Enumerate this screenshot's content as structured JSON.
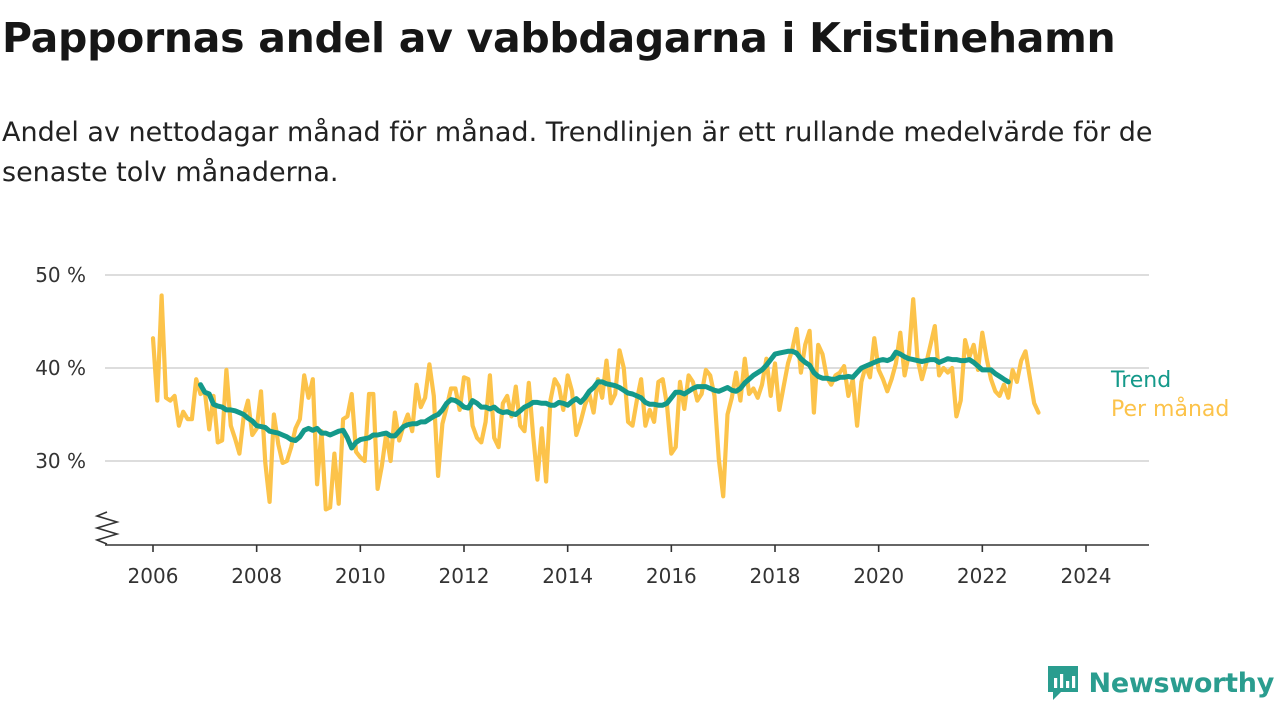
{
  "title": "Pappornas andel av vabbdagarna i Kristinehamn",
  "subtitle": "Andel av nettodagar månad för månad. Trendlinjen är ett rullande medelvärde för de senaste tolv månaderna.",
  "brand": {
    "name": "Newsworthy",
    "icon": "newsworthy-logo-icon"
  },
  "colors": {
    "monthly": "#fcc34a",
    "trend": "#14998a",
    "grid": "#dddddd",
    "axis": "#333333"
  },
  "chart_data": {
    "type": "line",
    "title": "Pappornas andel av vabbdagarna i Kristinehamn",
    "xlabel": "",
    "ylabel": "",
    "y_unit": "%",
    "x_range": [
      2006,
      2024.5
    ],
    "ylim": [
      21,
      50
    ],
    "y_axis_break": true,
    "y_ticks": [
      30,
      40,
      50
    ],
    "y_tick_labels": [
      "30 %",
      "40 %",
      "50 %"
    ],
    "x_ticks": [
      2006,
      2008,
      2010,
      2012,
      2014,
      2016,
      2018,
      2020,
      2022,
      2024
    ],
    "x_tick_labels": [
      "2006",
      "2008",
      "2010",
      "2012",
      "2014",
      "2016",
      "2018",
      "2020",
      "2022",
      "2024"
    ],
    "grid": "horizontal",
    "legend": "inline labels at line ends",
    "series": [
      {
        "name": "Per månad",
        "x_start": "2006-01",
        "frequency": "monthly",
        "values": [
          43.2,
          36.5,
          47.8,
          36.8,
          36.5,
          37.0,
          33.8,
          35.3,
          34.5,
          34.5,
          38.8,
          37.2,
          37.5,
          33.4,
          37.0,
          32.0,
          32.2,
          39.8,
          33.8,
          32.4,
          30.8,
          34.8,
          36.5,
          32.8,
          33.5,
          37.5,
          29.8,
          25.6,
          35.0,
          31.8,
          29.8,
          30.0,
          31.5,
          33.5,
          34.5,
          39.2,
          36.8,
          38.8,
          27.5,
          33.2,
          24.8,
          25.0,
          30.8,
          25.4,
          34.5,
          34.8,
          37.2,
          31.0,
          30.4,
          30.0,
          37.2,
          37.2,
          27.0,
          29.5,
          33.0,
          30.0,
          35.2,
          32.2,
          33.8,
          35.0,
          33.2,
          38.2,
          35.8,
          36.8,
          40.4,
          37.0,
          28.4,
          34.0,
          35.8,
          37.8,
          37.8,
          35.5,
          39.0,
          38.8,
          33.8,
          32.5,
          32.0,
          34.2,
          39.2,
          32.5,
          31.5,
          36.2,
          37.0,
          34.8,
          38.0,
          33.8,
          33.2,
          38.4,
          32.8,
          28.0,
          33.5,
          27.8,
          36.5,
          38.8,
          38.0,
          35.5,
          39.2,
          37.5,
          32.8,
          34.2,
          36.0,
          37.2,
          35.2,
          38.8,
          36.8,
          40.8,
          36.2,
          37.2,
          41.9,
          40.0,
          34.2,
          33.8,
          36.5,
          38.8,
          33.8,
          35.5,
          34.2,
          38.5,
          38.8,
          36.0,
          30.8,
          31.5,
          38.5,
          35.6,
          39.2,
          38.5,
          36.5,
          37.2,
          39.8,
          39.2,
          37.0,
          30.2,
          26.2,
          35.0,
          36.8,
          39.5,
          36.5,
          41.0,
          37.2,
          37.8,
          36.8,
          38.2,
          41.0,
          37.0,
          40.5,
          35.5,
          38.0,
          40.5,
          42.0,
          44.2,
          39.5,
          42.5,
          44.0,
          35.2,
          42.5,
          41.5,
          39.0,
          38.2,
          39.2,
          39.5,
          40.2,
          37.0,
          38.8,
          33.8,
          38.5,
          40.2,
          39.0,
          43.2,
          39.8,
          38.8,
          37.5,
          38.8,
          40.5,
          43.8,
          39.2,
          41.5,
          47.4,
          41.0,
          38.8,
          40.5,
          42.5,
          44.5,
          39.2,
          40.0,
          39.5,
          40.0,
          34.8,
          36.5,
          43.0,
          41.2,
          42.5,
          39.8,
          43.8,
          41.0,
          38.8,
          37.5,
          37.0,
          38.2,
          36.8,
          39.8,
          38.5,
          40.8,
          41.8,
          39.0,
          36.2,
          35.2
        ]
      },
      {
        "name": "Trend",
        "x_start": "2006-12",
        "frequency": "monthly",
        "values": [
          38.2,
          37.4,
          37.2,
          36.1,
          35.9,
          35.8,
          35.5,
          35.5,
          35.4,
          35.2,
          35.0,
          34.6,
          34.3,
          33.8,
          33.7,
          33.6,
          33.2,
          33.1,
          33.0,
          32.8,
          32.6,
          32.3,
          32.2,
          32.6,
          33.3,
          33.5,
          33.3,
          33.5,
          33.0,
          33.0,
          32.8,
          33.0,
          33.2,
          33.3,
          32.5,
          31.4,
          32.0,
          32.3,
          32.4,
          32.5,
          32.8,
          32.8,
          32.9,
          33.0,
          32.7,
          32.7,
          33.2,
          33.7,
          33.9,
          34.0,
          34.0,
          34.2,
          34.2,
          34.5,
          34.8,
          35.0,
          35.5,
          36.2,
          36.6,
          36.5,
          36.2,
          35.8,
          35.7,
          36.5,
          36.2,
          35.8,
          35.8,
          35.6,
          35.8,
          35.4,
          35.2,
          35.3,
          35.1,
          35.0,
          35.4,
          35.8,
          36.0,
          36.3,
          36.3,
          36.2,
          36.2,
          36.0,
          36.0,
          36.3,
          36.2,
          36.0,
          36.4,
          36.7,
          36.3,
          36.8,
          37.5,
          37.9,
          38.5,
          38.5,
          38.3,
          38.2,
          38.1,
          37.9,
          37.6,
          37.3,
          37.2,
          37.0,
          36.8,
          36.3,
          36.1,
          36.1,
          36.0,
          36.0,
          36.2,
          36.8,
          37.4,
          37.4,
          37.2,
          37.5,
          37.8,
          38.0,
          38.0,
          38.0,
          37.8,
          37.6,
          37.5,
          37.7,
          37.9,
          37.6,
          37.5,
          37.8,
          38.4,
          38.8,
          39.2,
          39.5,
          39.8,
          40.3,
          40.9,
          41.5,
          41.6,
          41.7,
          41.8,
          41.8,
          41.6,
          41.0,
          40.6,
          40.3,
          39.5,
          39.1,
          38.9,
          38.9,
          38.8,
          38.8,
          39.0,
          39.0,
          39.1,
          39.0,
          39.5,
          40.0,
          40.2,
          40.4,
          40.6,
          40.8,
          40.9,
          40.8,
          41.0,
          41.7,
          41.5,
          41.2,
          41.0,
          40.9,
          40.8,
          40.7,
          40.8,
          40.9,
          40.9,
          40.6,
          40.8,
          41.0,
          40.9,
          40.9,
          40.8,
          40.8,
          40.9,
          40.6,
          40.2,
          39.8,
          39.8,
          39.8,
          39.4,
          39.1,
          38.8,
          38.5
        ]
      }
    ]
  }
}
